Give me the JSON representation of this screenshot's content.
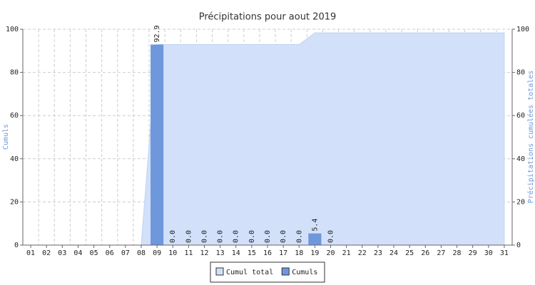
{
  "chart_data": {
    "type": "bar",
    "title": "Précipitations pour aout 2019",
    "categories": [
      "01",
      "02",
      "03",
      "04",
      "05",
      "06",
      "07",
      "08",
      "09",
      "10",
      "11",
      "12",
      "13",
      "14",
      "15",
      "16",
      "17",
      "18",
      "19",
      "20",
      "21",
      "22",
      "23",
      "24",
      "25",
      "26",
      "27",
      "28",
      "29",
      "30",
      "31"
    ],
    "series": [
      {
        "name": "Cumul total",
        "type": "area",
        "axis": "y2",
        "color": "#d2e0f9",
        "values": [
          null,
          null,
          null,
          null,
          null,
          null,
          null,
          0,
          92.9,
          92.9,
          92.9,
          92.9,
          92.9,
          92.9,
          92.9,
          92.9,
          92.9,
          92.9,
          98.3,
          98.3,
          98.3,
          98.3,
          98.3,
          98.3,
          98.3,
          98.3,
          98.3,
          98.3,
          98.3,
          98.3,
          98.3
        ]
      },
      {
        "name": "Cumuls",
        "type": "bar",
        "color": "#6f98dc",
        "values": [
          null,
          null,
          null,
          null,
          null,
          null,
          null,
          null,
          92.9,
          0,
          0,
          0,
          0,
          0,
          0,
          0,
          0,
          0,
          5.4,
          0,
          null,
          null,
          null,
          null,
          null,
          null,
          null,
          null,
          null,
          null,
          null
        ],
        "value_labels": [
          null,
          null,
          null,
          null,
          null,
          null,
          null,
          null,
          "92.9",
          "0.0",
          "0.0",
          "0.0",
          "0.0",
          "0.0",
          "0.0",
          "0.0",
          "0.0",
          "0.0",
          "5.4",
          "0.0",
          null,
          null,
          null,
          null,
          null,
          null,
          null,
          null,
          null,
          null,
          null
        ]
      }
    ],
    "ylabel": "Cumuls",
    "y2label": "Précipitations cumulées totales",
    "ylim": [
      0,
      100
    ],
    "yticks": [
      0,
      20,
      40,
      60,
      80,
      100
    ],
    "y2lim": [
      0,
      100
    ],
    "y2ticks": [
      0,
      20,
      40,
      60,
      80,
      100
    ],
    "grid": true,
    "legend": "bottom"
  }
}
